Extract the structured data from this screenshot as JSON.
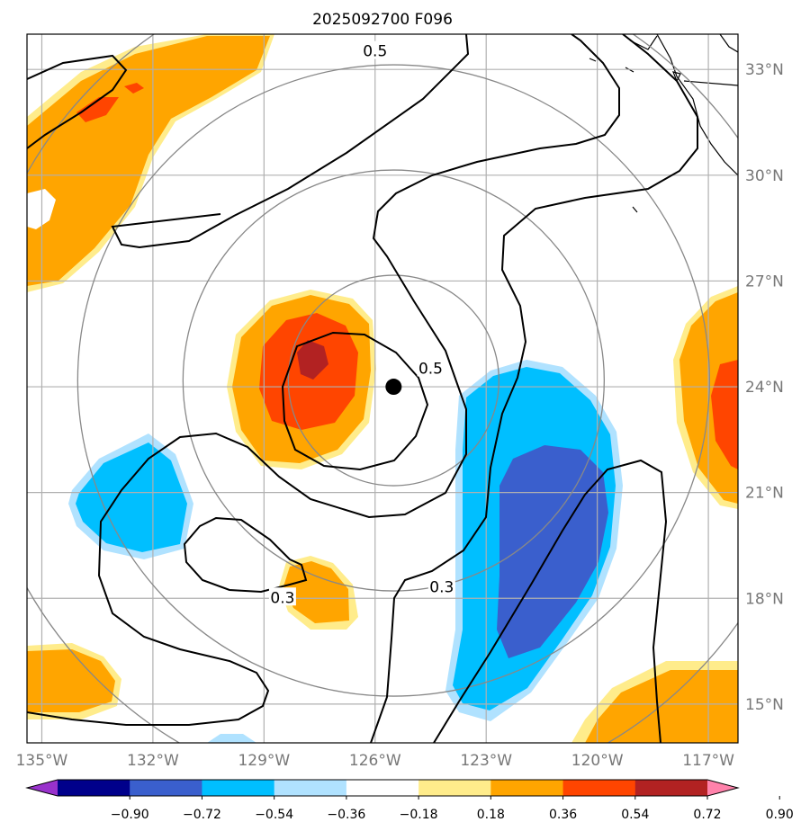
{
  "title": "2025092700 F096",
  "map": {
    "lon_range": [
      -135.4,
      -116.2
    ],
    "lat_range": [
      13.9,
      34.0
    ],
    "lon_ticks": [
      {
        "value": -135,
        "label": "135°W"
      },
      {
        "value": -132,
        "label": "132°W"
      },
      {
        "value": -129,
        "label": "129°W"
      },
      {
        "value": -126,
        "label": "126°W"
      },
      {
        "value": -123,
        "label": "123°W"
      },
      {
        "value": -120,
        "label": "120°W"
      },
      {
        "value": -117,
        "label": "117°W"
      }
    ],
    "lat_ticks": [
      {
        "value": 33,
        "label": "33°N"
      },
      {
        "value": 30,
        "label": "30°N"
      },
      {
        "value": 27,
        "label": "27°N"
      },
      {
        "value": 24,
        "label": "24°N"
      },
      {
        "value": 21,
        "label": "21°N"
      },
      {
        "value": 18,
        "label": "18°N"
      },
      {
        "value": 15,
        "label": "15°N"
      }
    ],
    "storm_center": {
      "lon": -125.5,
      "lat": 24.0
    },
    "range_ring_count": 4,
    "contour_labels": [
      {
        "text": "0.5",
        "lon": -126.0,
        "lat": 33.5
      },
      {
        "text": "0.5",
        "lon": -124.5,
        "lat": 24.5
      },
      {
        "text": "0.3",
        "lon": -128.5,
        "lat": 18.0
      },
      {
        "text": "0.3",
        "lon": -124.2,
        "lat": 18.3
      }
    ]
  },
  "colorbar": {
    "ticks": [
      "−0.90",
      "−0.72",
      "−0.54",
      "−0.36",
      "−0.18",
      "0.18",
      "0.36",
      "0.54",
      "0.72",
      "0.90"
    ],
    "colors": [
      "#9932cc",
      "#00008b",
      "#3a5fcd",
      "#00bfff",
      "#b0e2ff",
      "#ffffff",
      "#ffec8b",
      "#ffa500",
      "#ff4500",
      "#b22222",
      "#ff82ab"
    ]
  }
}
